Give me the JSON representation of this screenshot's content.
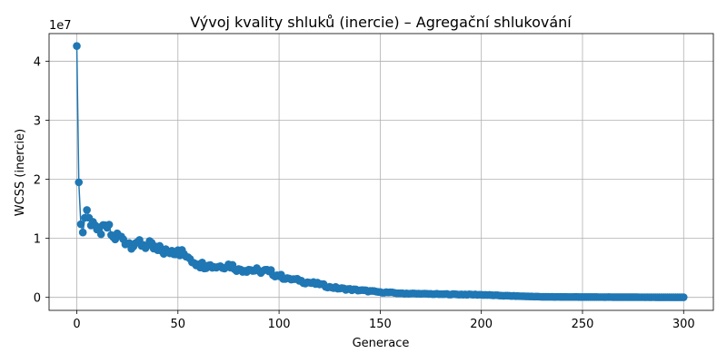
{
  "chart_data": {
    "type": "line",
    "title": "Vývoj kvality shluků (inercie) – Agregační shlukování",
    "xlabel": "Generace",
    "ylabel": "WCSS (inercie)",
    "y_offset_text": "1e7",
    "y_scale_factor": 10000000,
    "xlim": [
      -13.7,
      314.7
    ],
    "ylim": [
      -2200000,
      44700000
    ],
    "x_ticks": [
      0,
      50,
      100,
      150,
      200,
      250,
      300
    ],
    "y_ticks": [
      0,
      10000000,
      20000000,
      30000000,
      40000000
    ],
    "y_tick_labels": [
      "0",
      "1",
      "2",
      "3",
      "4"
    ],
    "grid": true,
    "marker": "circle",
    "color": "#1f77b4",
    "series": [
      {
        "name": "",
        "anchors_x": [
          0,
          1,
          2,
          3,
          4,
          5,
          6,
          8,
          10,
          12,
          15,
          18,
          22,
          26,
          30,
          35,
          40,
          45,
          50,
          55,
          60,
          65,
          70,
          75,
          80,
          85,
          90,
          95,
          100,
          105,
          110,
          115,
          120,
          125,
          130,
          140,
          150,
          160,
          170,
          180,
          190,
          200,
          210,
          220,
          230,
          240,
          250,
          260,
          270,
          280,
          290,
          300
        ],
        "anchors_y": [
          42600000,
          19500000,
          12400000,
          11000000,
          13500000,
          14800000,
          13500000,
          12800000,
          11500000,
          10700000,
          11800000,
          10200000,
          10300000,
          9200000,
          9400000,
          8800000,
          8000000,
          7800000,
          8000000,
          6800000,
          5600000,
          5400000,
          5200000,
          5600000,
          4800000,
          4700000,
          4500000,
          4400000,
          3600000,
          3200000,
          2800000,
          2500000,
          2200000,
          1800000,
          1500000,
          1200000,
          900000,
          700000,
          600000,
          550000,
          500000,
          450000,
          300000,
          200000,
          100000,
          80000,
          60000,
          50000,
          40000,
          30000,
          25000,
          20000
        ]
      }
    ]
  }
}
